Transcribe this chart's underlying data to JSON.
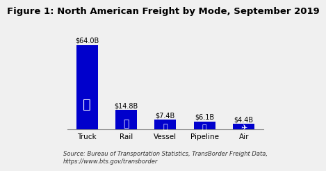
{
  "title": "Figure 1: North American Freight by Mode, September 2019",
  "categories": [
    "Truck",
    "Rail",
    "Vessel",
    "Pipeline",
    "Air"
  ],
  "values": [
    64.0,
    14.8,
    7.4,
    6.1,
    4.4
  ],
  "labels": [
    "$64.0B",
    "$14.8B",
    "$7.4B",
    "$6.1B",
    "$4.4B"
  ],
  "bar_color": "#0000CC",
  "background_color": "#f0f0f0",
  "source_text": "Source: Bureau of Transportation Statistics, TransBorder Freight Data,\nhttps://www.bts.gov/transborder",
  "title_fontsize": 9.5,
  "label_fontsize": 7,
  "axis_fontsize": 7.5,
  "source_fontsize": 6,
  "ylim": [
    0,
    72
  ],
  "bar_width": 0.55
}
